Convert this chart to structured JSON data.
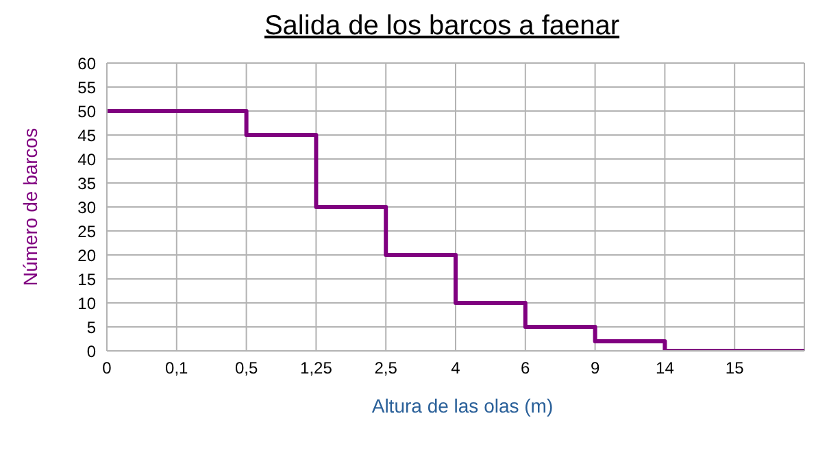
{
  "chart_data": {
    "type": "step",
    "title": "Salida de los barcos a faenar",
    "xlabel": "Altura de las olas (m)",
    "ylabel": "Número de barcos",
    "categories": [
      "0",
      "0,1",
      "0,5",
      "1,25",
      "2,5",
      "4",
      "6",
      "9",
      "14",
      "15",
      null
    ],
    "series": [
      {
        "color": "#800080",
        "values": [
          50,
          50,
          45,
          30,
          20,
          10,
          5,
          2,
          0,
          0,
          0
        ]
      }
    ],
    "ylim": [
      0,
      60
    ],
    "yticks": [
      0,
      5,
      10,
      15,
      20,
      25,
      30,
      35,
      40,
      45,
      50,
      55,
      60
    ],
    "grid": true,
    "legend": false,
    "marker": "none",
    "line_style": "solid"
  }
}
